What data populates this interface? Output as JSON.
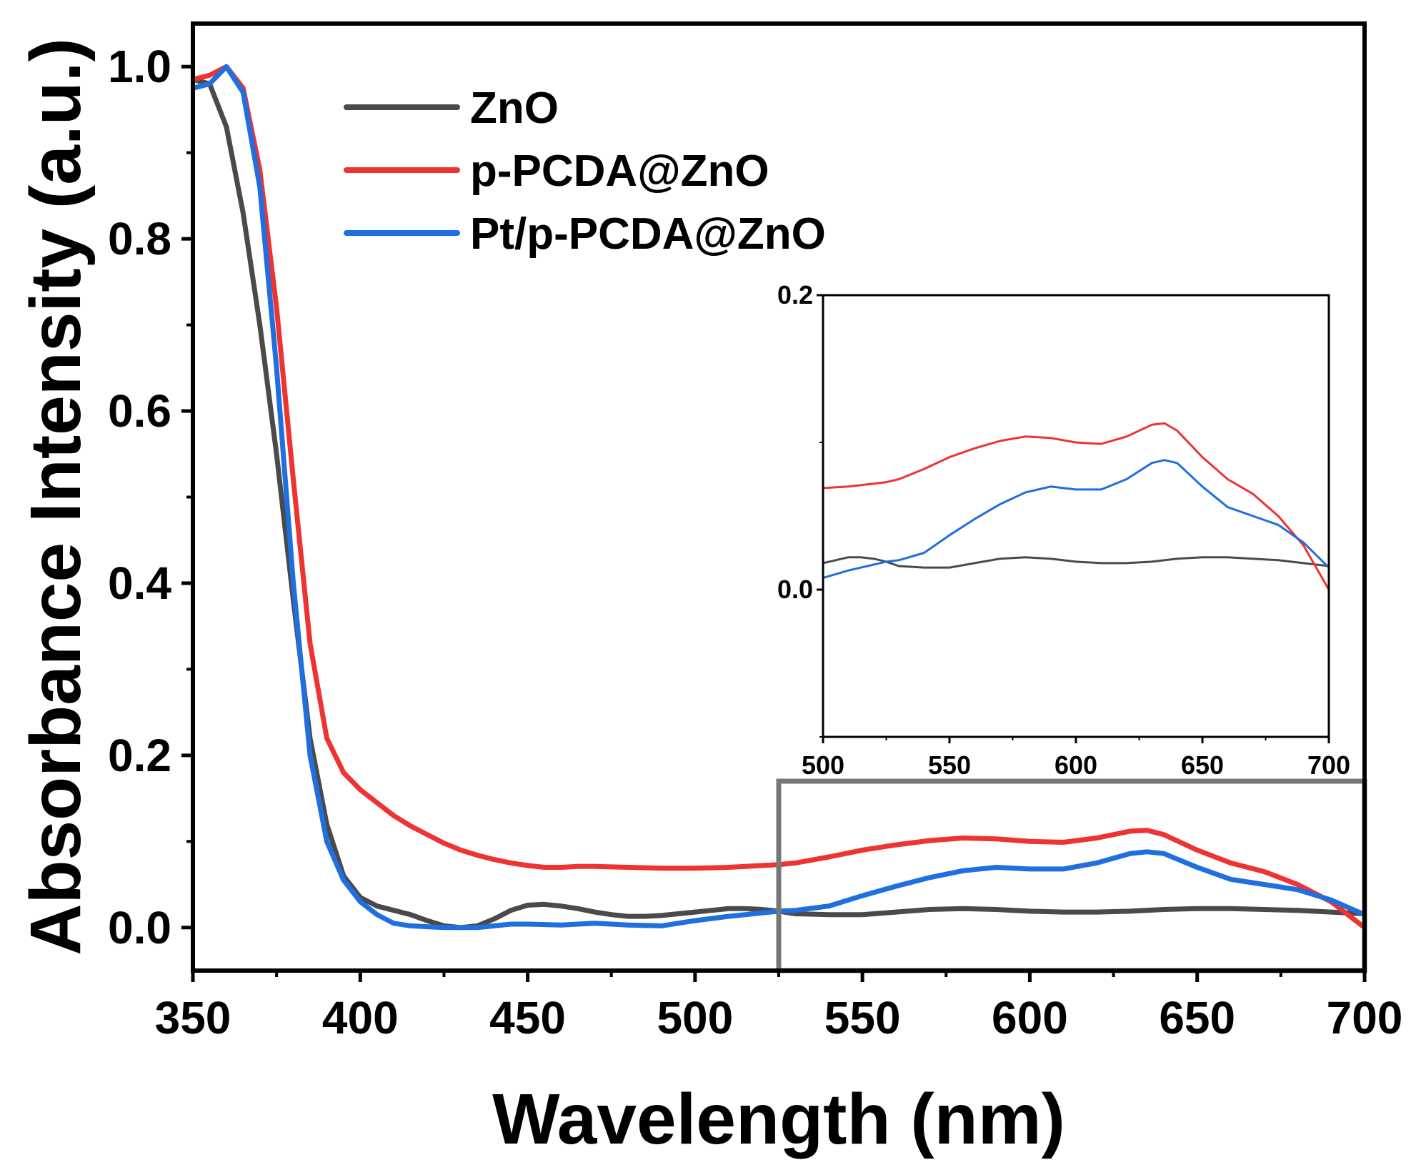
{
  "chart_data": {
    "type": "line",
    "xlabel": "Wavelength (nm)",
    "ylabel": "Absorbance Intensity (a.u.)",
    "xlim": [
      350,
      700
    ],
    "ylim": [
      -0.05,
      1.05
    ],
    "xticks": [
      350,
      400,
      450,
      500,
      550,
      600,
      650,
      700
    ],
    "yticks": [
      0.0,
      0.2,
      0.4,
      0.6,
      0.8,
      1.0
    ],
    "xtick_labels": [
      "350",
      "400",
      "450",
      "500",
      "550",
      "600",
      "650",
      "700"
    ],
    "ytick_labels": [
      "0.0",
      "0.2",
      "0.4",
      "0.6",
      "0.8",
      "1.0"
    ],
    "legend_position": "top-left",
    "series": [
      {
        "name": "ZnO",
        "color": "#4a4a4a",
        "x": [
          350,
          355,
          360,
          365,
          370,
          375,
          380,
          385,
          390,
          395,
          400,
          405,
          410,
          415,
          420,
          425,
          430,
          435,
          440,
          445,
          450,
          455,
          460,
          465,
          470,
          475,
          480,
          485,
          490,
          495,
          500,
          505,
          510,
          515,
          520,
          525,
          530,
          540,
          550,
          560,
          570,
          580,
          590,
          600,
          610,
          620,
          630,
          640,
          650,
          660,
          670,
          680,
          690,
          700
        ],
        "y": [
          0.985,
          0.98,
          0.93,
          0.83,
          0.7,
          0.55,
          0.38,
          0.22,
          0.12,
          0.06,
          0.035,
          0.025,
          0.02,
          0.015,
          0.008,
          0.002,
          0.0,
          0.002,
          0.01,
          0.02,
          0.026,
          0.027,
          0.025,
          0.022,
          0.018,
          0.015,
          0.013,
          0.013,
          0.014,
          0.016,
          0.018,
          0.02,
          0.022,
          0.022,
          0.021,
          0.019,
          0.016,
          0.015,
          0.015,
          0.018,
          0.021,
          0.022,
          0.021,
          0.019,
          0.018,
          0.018,
          0.019,
          0.021,
          0.022,
          0.022,
          0.021,
          0.02,
          0.018,
          0.016
        ]
      },
      {
        "name": "p-PCDA@ZnO",
        "color": "#ee3333",
        "x": [
          350,
          355,
          360,
          365,
          370,
          375,
          380,
          385,
          390,
          395,
          400,
          405,
          410,
          415,
          420,
          425,
          430,
          435,
          440,
          445,
          450,
          455,
          460,
          465,
          470,
          480,
          490,
          500,
          510,
          520,
          525,
          530,
          540,
          550,
          560,
          570,
          580,
          590,
          600,
          610,
          620,
          630,
          635,
          640,
          650,
          660,
          670,
          680,
          690,
          700
        ],
        "y": [
          0.985,
          0.99,
          1.0,
          0.975,
          0.88,
          0.72,
          0.52,
          0.33,
          0.22,
          0.18,
          0.16,
          0.145,
          0.13,
          0.118,
          0.108,
          0.098,
          0.09,
          0.084,
          0.079,
          0.075,
          0.072,
          0.07,
          0.07,
          0.071,
          0.071,
          0.07,
          0.069,
          0.069,
          0.07,
          0.072,
          0.073,
          0.075,
          0.082,
          0.09,
          0.096,
          0.101,
          0.104,
          0.103,
          0.1,
          0.099,
          0.104,
          0.112,
          0.113,
          0.108,
          0.09,
          0.075,
          0.065,
          0.05,
          0.03,
          0.0
        ]
      },
      {
        "name": "Pt/p-PCDA@ZnO",
        "color": "#1f6fe0",
        "x": [
          350,
          355,
          360,
          365,
          370,
          375,
          380,
          385,
          390,
          395,
          400,
          405,
          410,
          415,
          420,
          425,
          430,
          435,
          440,
          445,
          450,
          460,
          470,
          480,
          490,
          500,
          510,
          520,
          525,
          530,
          540,
          550,
          560,
          570,
          580,
          590,
          600,
          610,
          620,
          630,
          635,
          640,
          650,
          660,
          670,
          680,
          690,
          700
        ],
        "y": [
          0.975,
          0.98,
          1.0,
          0.97,
          0.86,
          0.65,
          0.4,
          0.2,
          0.1,
          0.055,
          0.03,
          0.015,
          0.005,
          0.002,
          0.001,
          0.0,
          0.0,
          0.0,
          0.002,
          0.004,
          0.004,
          0.003,
          0.005,
          0.003,
          0.002,
          0.008,
          0.013,
          0.017,
          0.019,
          0.02,
          0.025,
          0.037,
          0.048,
          0.058,
          0.066,
          0.07,
          0.068,
          0.068,
          0.075,
          0.086,
          0.088,
          0.086,
          0.07,
          0.056,
          0.05,
          0.044,
          0.032,
          0.015
        ]
      }
    ],
    "inset": {
      "xlim": [
        500,
        700
      ],
      "ylim": [
        -0.1,
        0.2
      ],
      "xticks": [
        500,
        550,
        600,
        650,
        700
      ],
      "yticks": [
        0.0,
        0.2
      ],
      "xtick_labels": [
        "500",
        "550",
        "600",
        "650",
        "700"
      ],
      "ytick_labels": [
        "0.0",
        "0.2"
      ]
    },
    "zoom_region": {
      "x_range": [
        525,
        700
      ],
      "y_range": [
        -0.05,
        0.17
      ]
    }
  }
}
